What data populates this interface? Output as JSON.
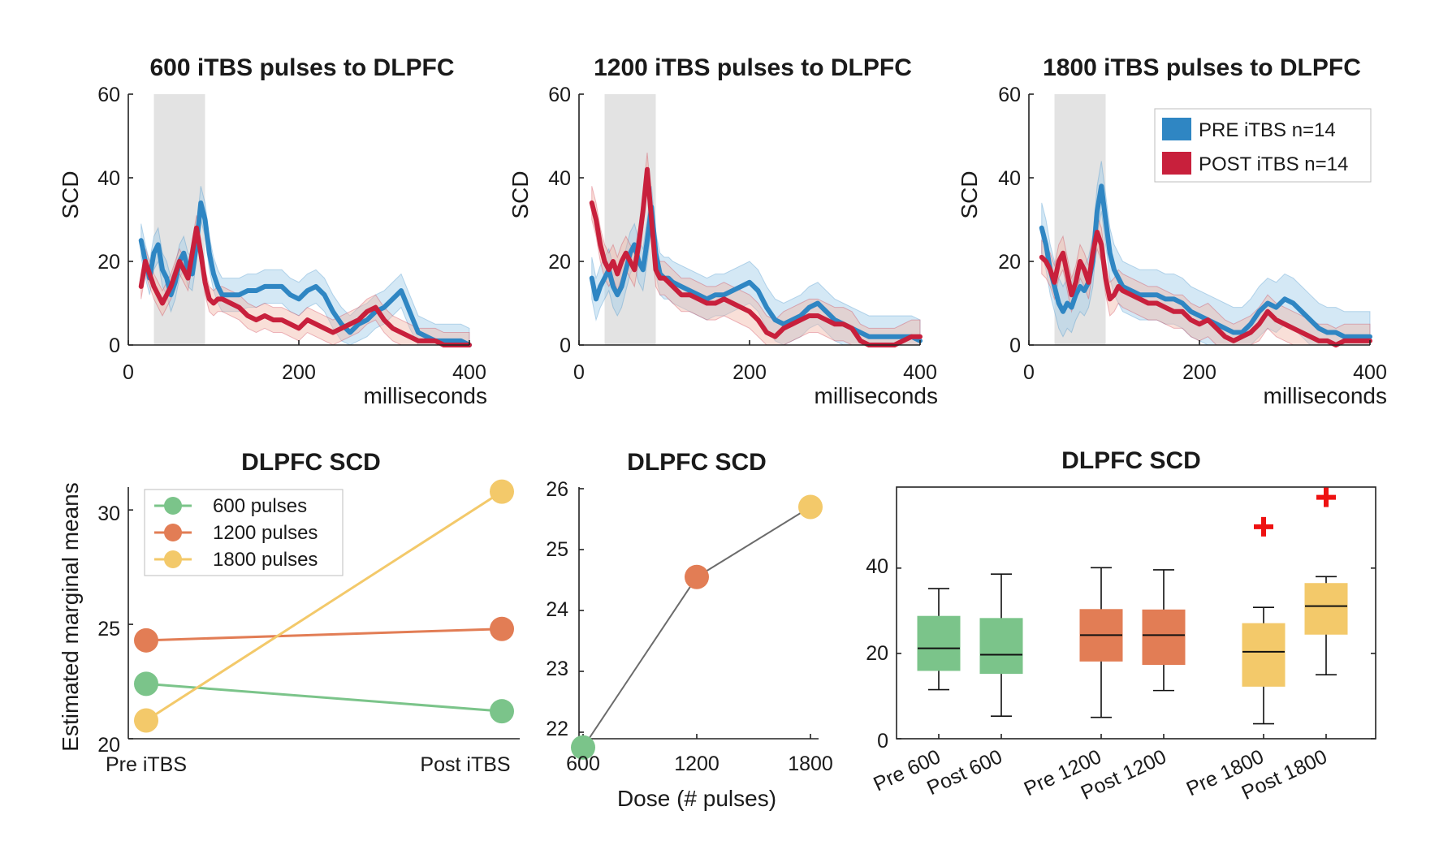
{
  "colors": {
    "pre": "#2f86c3",
    "pre_band": "#9fcbe8",
    "post": "#c8203c",
    "post_band": "#f2b8a8",
    "window": "#e3e3e3",
    "g600": "#7bc48a",
    "g1200": "#e27d55",
    "g1800": "#f3c96a",
    "outlier": "#ee1111",
    "dose_line": "#6b6b6b"
  },
  "chart_data": [
    {
      "type": "line",
      "title": "600 iTBS pulses to DLPFC",
      "xlabel": "milliseconds",
      "ylabel": "SCD",
      "xlim": [
        0,
        400
      ],
      "ylim": [
        0,
        60
      ],
      "xticks": [
        "0",
        "200",
        "400"
      ],
      "yticks": [
        "0",
        "20",
        "40",
        "60"
      ],
      "shaded_window": [
        30,
        90
      ],
      "series": [
        {
          "name": "PRE iTBS n=14",
          "x": [
            15,
            20,
            25,
            30,
            35,
            40,
            45,
            50,
            55,
            60,
            65,
            70,
            75,
            80,
            85,
            90,
            95,
            100,
            105,
            110,
            120,
            130,
            140,
            150,
            160,
            170,
            180,
            190,
            200,
            210,
            220,
            230,
            240,
            250,
            260,
            270,
            280,
            290,
            300,
            310,
            320,
            330,
            340,
            350,
            360,
            370,
            380,
            390,
            400
          ],
          "y": [
            25,
            20,
            16,
            22,
            24,
            18,
            16,
            12,
            15,
            20,
            22,
            18,
            17,
            24,
            34,
            30,
            22,
            17,
            14,
            12,
            12,
            12,
            13,
            13,
            14,
            14,
            14,
            12,
            11,
            13,
            14,
            12,
            8,
            5,
            3,
            5,
            6,
            8,
            9,
            11,
            13,
            8,
            3,
            2,
            1,
            1,
            1,
            1,
            0
          ],
          "band": 4
        },
        {
          "name": "POST iTBS n=14",
          "x": [
            15,
            20,
            25,
            30,
            35,
            40,
            45,
            50,
            55,
            60,
            65,
            70,
            75,
            80,
            85,
            90,
            95,
            100,
            105,
            110,
            120,
            130,
            140,
            150,
            160,
            170,
            180,
            190,
            200,
            210,
            220,
            230,
            240,
            250,
            260,
            270,
            280,
            290,
            300,
            310,
            320,
            330,
            340,
            350,
            360,
            370,
            380,
            390,
            400
          ],
          "y": [
            14,
            20,
            17,
            14,
            12,
            10,
            12,
            14,
            17,
            20,
            18,
            16,
            22,
            28,
            22,
            15,
            11,
            10,
            11,
            11,
            10,
            9,
            7,
            6,
            7,
            6,
            6,
            5,
            4,
            6,
            5,
            4,
            3,
            4,
            5,
            6,
            8,
            9,
            6,
            4,
            3,
            2,
            1,
            1,
            1,
            0,
            0,
            0,
            0
          ],
          "band": 3
        }
      ]
    },
    {
      "type": "line",
      "title": "1200 iTBS pulses to DLPFC",
      "xlabel": "milliseconds",
      "ylabel": "SCD",
      "xlim": [
        0,
        400
      ],
      "ylim": [
        0,
        60
      ],
      "xticks": [
        "0",
        "200",
        "400"
      ],
      "yticks": [
        "0",
        "20",
        "40",
        "60"
      ],
      "shaded_window": [
        30,
        90
      ],
      "series": [
        {
          "name": "PRE iTBS n=14",
          "x": [
            15,
            20,
            25,
            30,
            35,
            40,
            45,
            50,
            55,
            60,
            65,
            70,
            75,
            80,
            85,
            90,
            95,
            100,
            105,
            110,
            120,
            130,
            140,
            150,
            160,
            170,
            180,
            190,
            200,
            210,
            220,
            230,
            240,
            250,
            260,
            270,
            280,
            290,
            300,
            310,
            320,
            330,
            340,
            350,
            360,
            370,
            380,
            390,
            400
          ],
          "y": [
            16,
            11,
            14,
            16,
            18,
            14,
            12,
            14,
            18,
            22,
            24,
            20,
            18,
            25,
            33,
            22,
            17,
            16,
            16,
            15,
            14,
            13,
            12,
            11,
            12,
            12,
            13,
            14,
            15,
            13,
            9,
            6,
            5,
            6,
            7,
            9,
            10,
            8,
            6,
            5,
            4,
            3,
            2,
            2,
            2,
            2,
            2,
            2,
            1
          ],
          "band": 5
        },
        {
          "name": "POST iTBS n=14",
          "x": [
            15,
            20,
            25,
            30,
            35,
            40,
            45,
            50,
            55,
            60,
            65,
            70,
            75,
            80,
            85,
            90,
            95,
            100,
            105,
            110,
            120,
            130,
            140,
            150,
            160,
            170,
            180,
            190,
            200,
            210,
            220,
            230,
            240,
            250,
            260,
            270,
            280,
            290,
            300,
            310,
            320,
            330,
            340,
            350,
            360,
            370,
            380,
            390,
            400
          ],
          "y": [
            34,
            30,
            24,
            20,
            18,
            20,
            17,
            20,
            22,
            20,
            18,
            24,
            32,
            42,
            30,
            18,
            16,
            16,
            15,
            14,
            12,
            12,
            11,
            10,
            10,
            11,
            10,
            9,
            8,
            6,
            3,
            2,
            4,
            5,
            6,
            7,
            7,
            6,
            5,
            5,
            4,
            1,
            0,
            0,
            0,
            0,
            1,
            2,
            2
          ],
          "band": 4
        }
      ]
    },
    {
      "type": "line",
      "title": "1800 iTBS pulses to DLPFC",
      "xlabel": "milliseconds",
      "ylabel": "SCD",
      "xlim": [
        0,
        400
      ],
      "ylim": [
        0,
        60
      ],
      "xticks": [
        "0",
        "200",
        "400"
      ],
      "yticks": [
        "0",
        "20",
        "40",
        "60"
      ],
      "shaded_window": [
        30,
        90
      ],
      "legend_position": "top-right",
      "series": [
        {
          "name": "PRE iTBS n=14",
          "x": [
            15,
            20,
            25,
            30,
            35,
            40,
            45,
            50,
            55,
            60,
            65,
            70,
            75,
            80,
            85,
            90,
            95,
            100,
            105,
            110,
            120,
            130,
            140,
            150,
            160,
            170,
            180,
            190,
            200,
            210,
            220,
            230,
            240,
            250,
            260,
            270,
            280,
            290,
            300,
            310,
            320,
            330,
            340,
            350,
            360,
            370,
            380,
            390,
            400
          ],
          "y": [
            28,
            24,
            18,
            14,
            10,
            8,
            10,
            9,
            12,
            14,
            13,
            15,
            20,
            32,
            38,
            30,
            22,
            18,
            16,
            14,
            13,
            12,
            12,
            12,
            11,
            11,
            10,
            8,
            7,
            6,
            5,
            4,
            3,
            3,
            5,
            8,
            10,
            9,
            11,
            10,
            8,
            6,
            4,
            3,
            3,
            2,
            2,
            2,
            2
          ],
          "band": 6
        },
        {
          "name": "POST iTBS n=14",
          "x": [
            15,
            20,
            25,
            30,
            35,
            40,
            45,
            50,
            55,
            60,
            65,
            70,
            75,
            80,
            85,
            90,
            95,
            100,
            105,
            110,
            120,
            130,
            140,
            150,
            160,
            170,
            180,
            190,
            200,
            210,
            220,
            230,
            240,
            250,
            260,
            270,
            280,
            290,
            300,
            310,
            320,
            330,
            340,
            350,
            360,
            370,
            380,
            390,
            400
          ],
          "y": [
            21,
            20,
            18,
            15,
            20,
            22,
            17,
            12,
            15,
            20,
            18,
            15,
            22,
            27,
            24,
            16,
            11,
            12,
            14,
            13,
            12,
            11,
            10,
            10,
            9,
            8,
            8,
            6,
            5,
            6,
            4,
            2,
            1,
            2,
            3,
            5,
            8,
            6,
            5,
            4,
            3,
            2,
            1,
            1,
            0,
            1,
            1,
            1,
            1
          ],
          "band": 4
        }
      ]
    },
    {
      "type": "line",
      "title": "DLPFC SCD",
      "ylabel": "Estimated marginal means",
      "categories": [
        "Pre iTBS",
        "Post iTBS"
      ],
      "ylim": [
        20,
        31
      ],
      "yticks": [
        "20",
        "25",
        "30"
      ],
      "legend_position": "top-left",
      "series": [
        {
          "name": "600 pulses",
          "values": [
            22.4,
            21.2
          ]
        },
        {
          "name": "1200 pulses",
          "values": [
            24.3,
            24.8
          ]
        },
        {
          "name": "1800 pulses",
          "values": [
            20.8,
            30.8
          ]
        }
      ]
    },
    {
      "type": "line",
      "title": "DLPFC SCD",
      "xlabel": "Dose (# pulses)",
      "x": [
        600,
        1200,
        1800
      ],
      "values": [
        21.75,
        24.55,
        25.7
      ],
      "xlim": [
        600,
        1800
      ],
      "ylim": [
        21.8,
        26
      ],
      "xticks": [
        "600",
        "1200",
        "1800"
      ],
      "yticks": [
        "22",
        "23",
        "24",
        "25",
        "26"
      ]
    },
    {
      "type": "box",
      "title": "DLPFC SCD",
      "ylim": [
        0,
        59
      ],
      "yticks": [
        "0",
        "20",
        "40"
      ],
      "categories": [
        "Pre 600",
        "Post 600",
        "Pre 1200",
        "Post 1200",
        "Pre 1800",
        "Post 1800"
      ],
      "boxes": [
        {
          "label": "Pre 600",
          "whisker_low": 11.5,
          "q1": 16,
          "median": 21.2,
          "q3": 28.7,
          "whisker_high": 35.2,
          "outliers": []
        },
        {
          "label": "Post 600",
          "whisker_low": 5.3,
          "q1": 15.3,
          "median": 19.7,
          "q3": 28.2,
          "whisker_high": 38.6,
          "outliers": []
        },
        {
          "label": "Pre 1200",
          "whisker_low": 5,
          "q1": 18.2,
          "median": 24.3,
          "q3": 30.3,
          "whisker_high": 40.1,
          "outliers": []
        },
        {
          "label": "Post 1200",
          "whisker_low": 11.3,
          "q1": 17.4,
          "median": 24.3,
          "q3": 30.2,
          "whisker_high": 39.6,
          "outliers": []
        },
        {
          "label": "Pre 1800",
          "whisker_low": 3.5,
          "q1": 12.3,
          "median": 20.4,
          "q3": 27,
          "whisker_high": 30.8,
          "outliers": [
            49.7
          ]
        },
        {
          "label": "Post 1800",
          "whisker_low": 15,
          "q1": 24.5,
          "median": 31.1,
          "q3": 36.4,
          "whisker_high": 38,
          "outliers": [
            56.6
          ]
        }
      ]
    }
  ]
}
